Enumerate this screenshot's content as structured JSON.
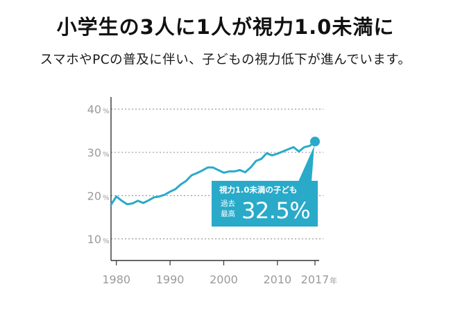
{
  "title": "小学生の3人に1人が視力1.0未満に",
  "subtitle": "スマホやPCの普及に伴い、子どもの視力低下が進んでいます。",
  "callout": {
    "label": "視力1.0未満の子ども",
    "sub": "過去最高",
    "value": "32.5%"
  },
  "colors": {
    "line": "#29aac9",
    "callout": "#29aac9",
    "axis": "#333333",
    "grid": "#999999",
    "tick_text": "#9a9a9a"
  },
  "chart_data": {
    "type": "line",
    "title": "",
    "xlabel": "",
    "ylabel": "",
    "x_unit": "年",
    "y_unit": "%",
    "xlim": [
      1979,
      2017
    ],
    "ylim": [
      5,
      42
    ],
    "grid": true,
    "x_ticks": [
      {
        "value": 1980,
        "label": "1980"
      },
      {
        "value": 1990,
        "label": "1990"
      },
      {
        "value": 2000,
        "label": "2000"
      },
      {
        "value": 2010,
        "label": "2010"
      },
      {
        "value": 2017,
        "label": "2017"
      }
    ],
    "y_ticks": [
      {
        "value": 10,
        "label": "10"
      },
      {
        "value": 20,
        "label": "20"
      },
      {
        "value": 30,
        "label": "30"
      },
      {
        "value": 40,
        "label": "40"
      }
    ],
    "series": [
      {
        "name": "視力1.0未満の子ども",
        "x": [
          1979,
          1980,
          1981,
          1982,
          1983,
          1984,
          1985,
          1986,
          1987,
          1988,
          1989,
          1990,
          1991,
          1992,
          1993,
          1994,
          1995,
          1996,
          1997,
          1998,
          1999,
          2000,
          2001,
          2002,
          2003,
          2004,
          2005,
          2006,
          2007,
          2008,
          2009,
          2010,
          2011,
          2012,
          2013,
          2014,
          2015,
          2016,
          2017
        ],
        "y": [
          17.9,
          19.8,
          18.8,
          18.0,
          18.2,
          18.8,
          18.3,
          18.9,
          19.6,
          19.8,
          20.2,
          20.9,
          21.5,
          22.6,
          23.4,
          24.7,
          25.2,
          25.8,
          26.5,
          26.5,
          25.9,
          25.3,
          25.6,
          25.6,
          25.9,
          25.4,
          26.5,
          28.0,
          28.5,
          29.8,
          29.3,
          29.7,
          30.2,
          30.7,
          31.2,
          30.2,
          31.2,
          31.5,
          32.5
        ]
      }
    ],
    "highlight": {
      "x": 2017,
      "y": 32.5
    }
  }
}
